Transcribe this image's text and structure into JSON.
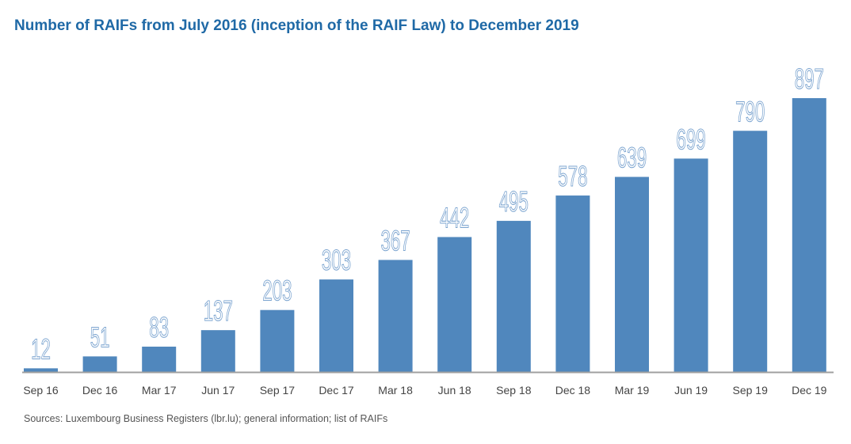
{
  "chart_data": {
    "type": "bar",
    "title": "Number of RAIFs from July 2016 (inception of the RAIF Law) to December 2019",
    "categories": [
      "Sep 16",
      "Dec 16",
      "Mar 17",
      "Jun 17",
      "Sep 17",
      "Dec 17",
      "Mar 18",
      "Jun 18",
      "Sep 18",
      "Dec 18",
      "Mar 19",
      "Jun 19",
      "Sep 19",
      "Dec 19"
    ],
    "values": [
      12,
      51,
      83,
      137,
      203,
      303,
      367,
      442,
      495,
      578,
      639,
      699,
      790,
      897
    ],
    "xlabel": "",
    "ylabel": "",
    "ylim": [
      0,
      897
    ],
    "grid": false,
    "data_labels": true,
    "bar_color": "#5087bd",
    "label_color": "#7aa3cf",
    "source": "Sources: Luxembourg Business Registers (lbr.lu); general information; list of RAIFs"
  }
}
